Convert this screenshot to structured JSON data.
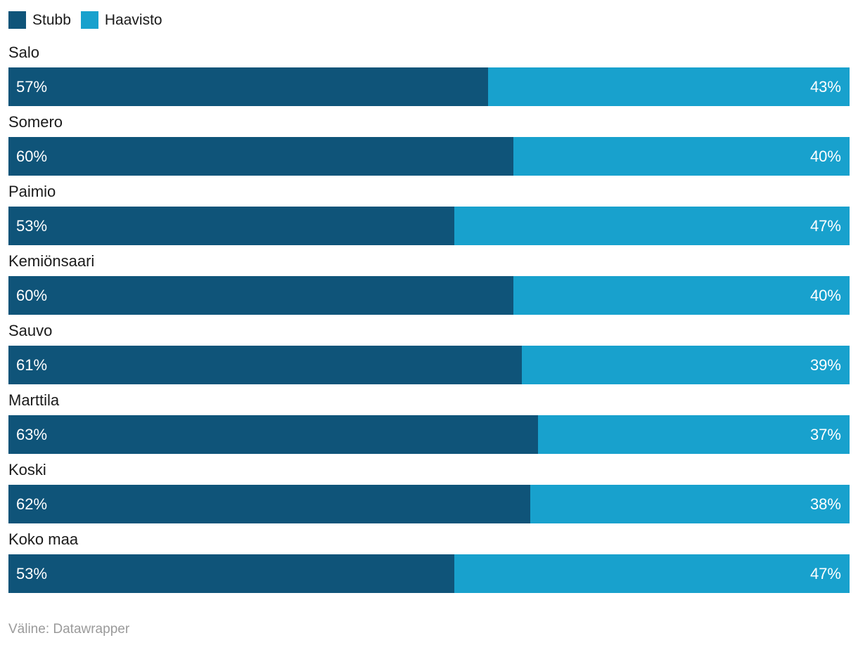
{
  "footer": "Väline: Datawrapper",
  "chart_data": {
    "type": "bar",
    "stacked": true,
    "orientation": "horizontal",
    "title": "",
    "categories": [
      "Salo",
      "Somero",
      "Paimio",
      "Kemiönsaari",
      "Sauvo",
      "Marttila",
      "Koski",
      "Koko maa"
    ],
    "series": [
      {
        "name": "Stubb",
        "color": "#0f5479",
        "values": [
          57,
          60,
          53,
          60,
          61,
          63,
          62,
          53
        ]
      },
      {
        "name": "Haavisto",
        "color": "#18a1cd",
        "values": [
          43,
          40,
          47,
          40,
          39,
          37,
          38,
          47
        ]
      }
    ],
    "value_suffix": "%",
    "xlim": [
      0,
      100
    ],
    "grid": false,
    "legend_position": "top-left",
    "colors": {
      "category_text": "#1a1a1a",
      "value_text": "#ffffff",
      "footer_text": "#9a9a9a",
      "background": "#ffffff"
    }
  }
}
